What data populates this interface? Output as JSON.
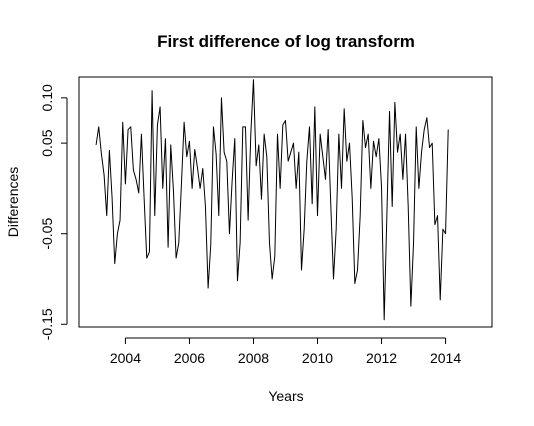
{
  "chart_data": {
    "type": "line",
    "title": "First difference of log transform",
    "xlabel": "Years",
    "ylabel": "Differences",
    "xlim": [
      2002.55,
      2015.45
    ],
    "ylim": [
      -0.153,
      0.123
    ],
    "xticks": [
      2004,
      2006,
      2008,
      2010,
      2012,
      2014
    ],
    "xtick_labels": [
      "2004",
      "2006",
      "2008",
      "2010",
      "2012",
      "2014"
    ],
    "yticks": [
      -0.15,
      -0.05,
      0.05,
      0.1
    ],
    "ytick_labels": [
      "-0.15",
      "-0.05",
      "0.05",
      "0.10"
    ],
    "grid": false,
    "line_color": "#000000",
    "series": [
      {
        "start": 2003.083,
        "step": 0.08333,
        "values": [
          0.048,
          0.068,
          0.038,
          0.015,
          -0.03,
          0.042,
          -0.01,
          -0.083,
          -0.05,
          -0.035,
          0.073,
          0.005,
          0.065,
          0.068,
          0.02,
          0.01,
          -0.005,
          0.06,
          -0.01,
          -0.077,
          -0.07,
          0.108,
          -0.03,
          0.07,
          0.09,
          0.0,
          0.055,
          -0.065,
          0.048,
          -0.002,
          -0.077,
          -0.06,
          0.005,
          0.073,
          0.035,
          0.052,
          0.0,
          0.043,
          0.023,
          0.0,
          0.022,
          -0.02,
          -0.11,
          -0.062,
          0.068,
          0.038,
          -0.03,
          0.1,
          0.04,
          0.03,
          -0.05,
          0.008,
          0.055,
          -0.102,
          -0.06,
          0.068,
          0.068,
          -0.035,
          0.06,
          0.12,
          0.025,
          0.048,
          -0.012,
          0.06,
          0.035,
          -0.06,
          -0.1,
          -0.075,
          0.06,
          0.0,
          0.07,
          0.075,
          0.03,
          0.04,
          0.05,
          0.0,
          0.04,
          -0.09,
          -0.045,
          0.03,
          0.068,
          -0.017,
          0.09,
          -0.03,
          0.06,
          0.035,
          0.01,
          0.065,
          -0.02,
          -0.1,
          -0.045,
          0.06,
          0.0,
          0.088,
          0.03,
          0.05,
          -0.01,
          -0.105,
          -0.09,
          -0.03,
          0.075,
          0.045,
          0.06,
          0.0,
          0.052,
          0.035,
          0.055,
          0.002,
          -0.145,
          -0.03,
          0.085,
          -0.02,
          0.095,
          0.04,
          0.06,
          0.01,
          0.06,
          -0.02,
          -0.13,
          -0.06,
          0.068,
          0.0,
          0.04,
          0.065,
          0.078,
          0.045,
          0.05,
          -0.04,
          -0.03,
          -0.123,
          -0.045,
          -0.05,
          0.065
        ]
      }
    ]
  }
}
